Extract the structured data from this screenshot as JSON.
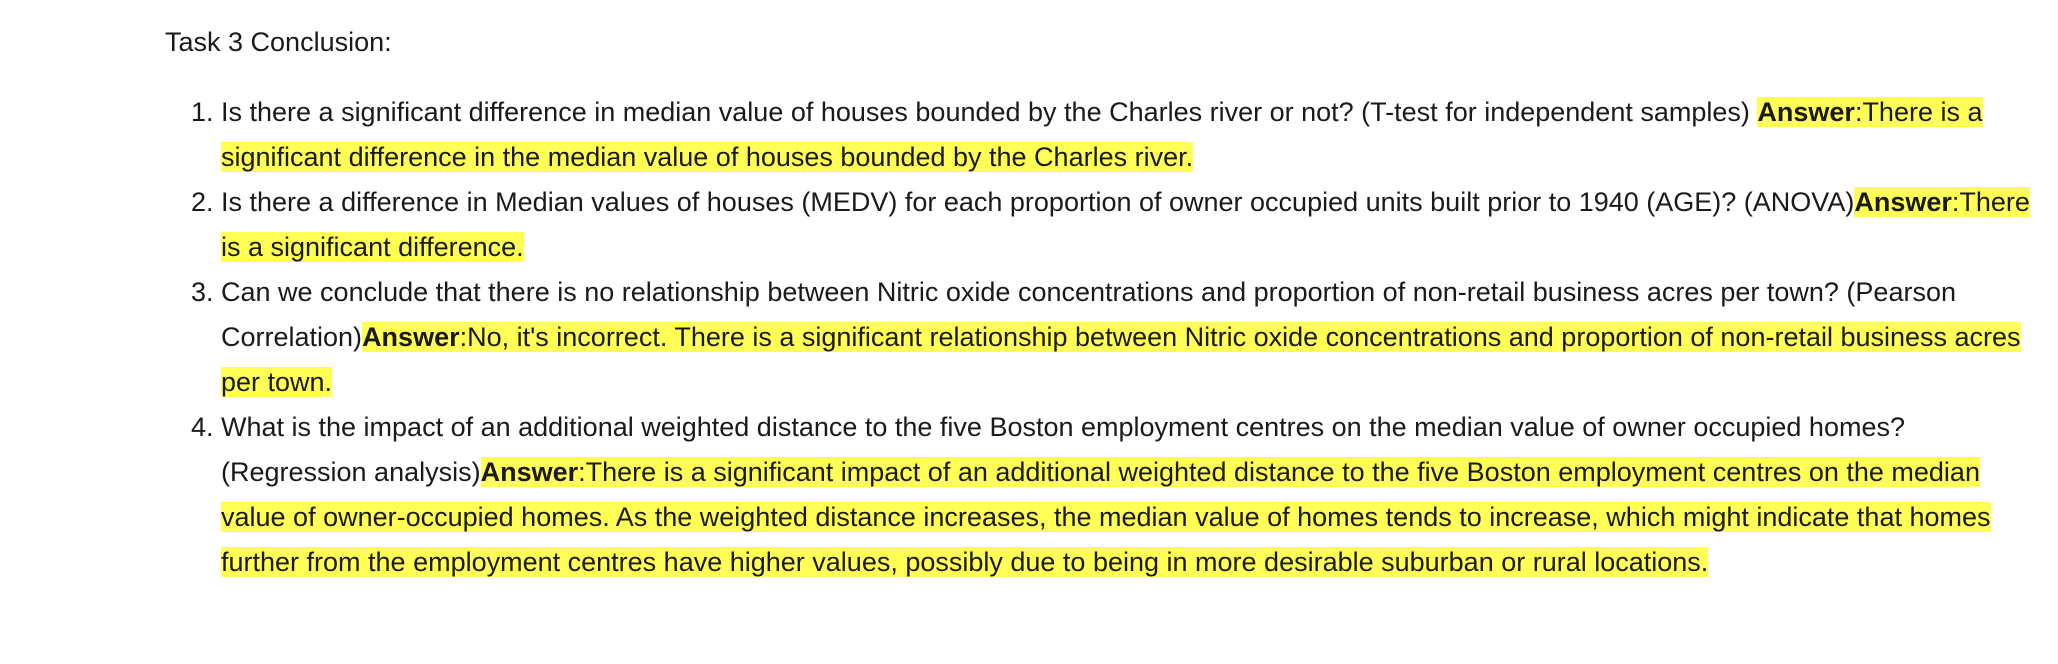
{
  "title": "Task 3 Conclusion:",
  "answer_label": "Answer",
  "items": [
    {
      "question": "Is there a significant difference in median value of houses bounded by the Charles river or not? (T-test for independent samples) ",
      "answer": ":There is a significant difference in the median value of houses bounded by the Charles river."
    },
    {
      "question": "Is there a difference in Median values of houses (MEDV) for each proportion of owner occupied units built prior to 1940 (AGE)? (ANOVA)",
      "answer": ":There is a significant difference."
    },
    {
      "question": "Can we conclude that there is no relationship between Nitric oxide concentrations and proportion of non-retail business acres per town? (Pearson Correlation)",
      "answer": ":No, it's incorrect. There is a significant relationship between Nitric oxide concentrations and proportion of non-retail business acres per town."
    },
    {
      "question": "What is the impact of an additional weighted distance to the five Boston employment centres on the median value of owner occupied homes? (Regression analysis)",
      "answer": ":There is a significant impact of an additional weighted distance to the five Boston employment centres on the median value of owner-occupied homes. As the weighted distance increases, the median value of homes tends to increase, which might indicate that homes further from the employment centres have higher values, possibly due to being in more desirable suburban or rural locations."
    }
  ]
}
